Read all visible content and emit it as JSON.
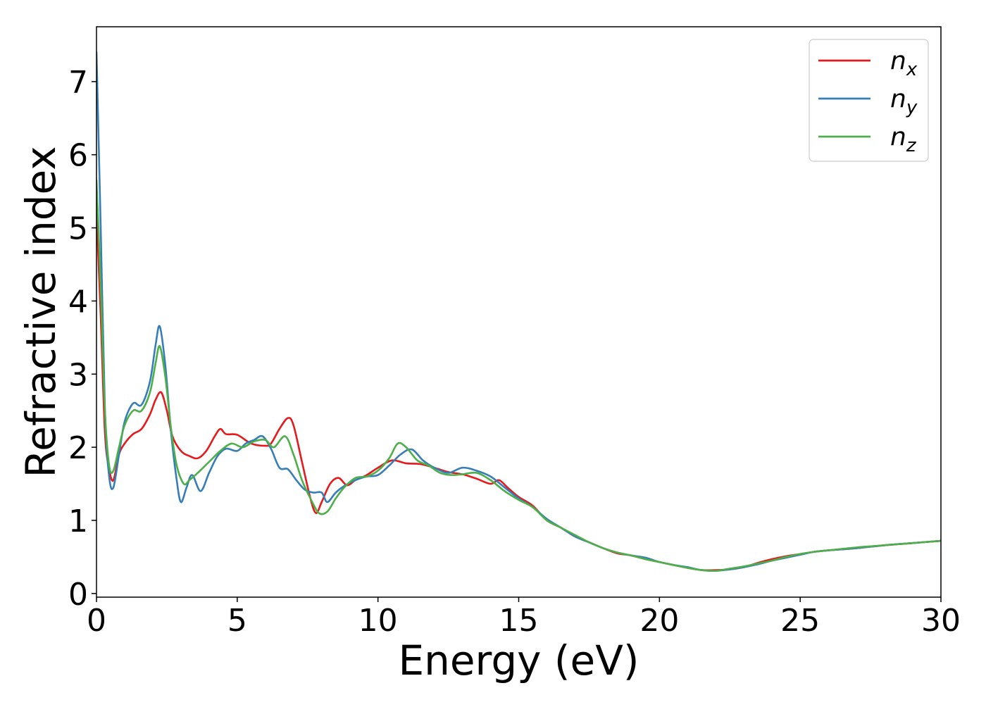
{
  "chart_data": {
    "type": "line",
    "title": "",
    "xlabel": "Energy (eV)",
    "ylabel": "Refractive index",
    "xlim": [
      0,
      30
    ],
    "ylim": [
      -0.05,
      7.75
    ],
    "xticks": [
      "0",
      "5",
      "10",
      "15",
      "20",
      "25",
      "30"
    ],
    "yticks": [
      "0",
      "1",
      "2",
      "3",
      "4",
      "5",
      "6",
      "7"
    ],
    "grid": false,
    "legend_position": "top-right",
    "series": [
      {
        "name": "n_x",
        "label_base": "n",
        "label_sub": "x",
        "color": "#e41a1c",
        "points": [
          [
            0,
            5.2
          ],
          [
            0.15,
            3.8
          ],
          [
            0.3,
            2.2
          ],
          [
            0.45,
            1.7
          ],
          [
            0.6,
            1.55
          ],
          [
            0.8,
            1.9
          ],
          [
            1.0,
            2.05
          ],
          [
            1.3,
            2.18
          ],
          [
            1.6,
            2.25
          ],
          [
            1.9,
            2.45
          ],
          [
            2.1,
            2.65
          ],
          [
            2.3,
            2.75
          ],
          [
            2.5,
            2.5
          ],
          [
            2.7,
            2.15
          ],
          [
            3.0,
            1.95
          ],
          [
            3.3,
            1.88
          ],
          [
            3.6,
            1.85
          ],
          [
            3.9,
            1.95
          ],
          [
            4.2,
            2.15
          ],
          [
            4.4,
            2.25
          ],
          [
            4.6,
            2.18
          ],
          [
            5.0,
            2.17
          ],
          [
            5.5,
            2.05
          ],
          [
            6.0,
            2.02
          ],
          [
            6.2,
            2.05
          ],
          [
            6.5,
            2.25
          ],
          [
            6.8,
            2.4
          ],
          [
            7.0,
            2.3
          ],
          [
            7.3,
            1.8
          ],
          [
            7.6,
            1.3
          ],
          [
            7.8,
            1.1
          ],
          [
            8.0,
            1.25
          ],
          [
            8.3,
            1.5
          ],
          [
            8.6,
            1.58
          ],
          [
            8.9,
            1.48
          ],
          [
            9.2,
            1.55
          ],
          [
            9.6,
            1.62
          ],
          [
            10.0,
            1.72
          ],
          [
            10.5,
            1.82
          ],
          [
            11.0,
            1.78
          ],
          [
            11.5,
            1.77
          ],
          [
            12.0,
            1.72
          ],
          [
            12.5,
            1.66
          ],
          [
            13.0,
            1.63
          ],
          [
            13.5,
            1.57
          ],
          [
            14.0,
            1.5
          ],
          [
            14.3,
            1.55
          ],
          [
            14.6,
            1.45
          ],
          [
            15.0,
            1.32
          ],
          [
            15.5,
            1.2
          ],
          [
            16.0,
            1.0
          ],
          [
            16.5,
            0.9
          ],
          [
            17.0,
            0.78
          ],
          [
            17.5,
            0.7
          ],
          [
            18.0,
            0.62
          ],
          [
            18.5,
            0.55
          ],
          [
            19.0,
            0.52
          ],
          [
            19.5,
            0.47
          ],
          [
            20.0,
            0.43
          ],
          [
            20.5,
            0.39
          ],
          [
            21.0,
            0.35
          ],
          [
            21.5,
            0.32
          ],
          [
            22.0,
            0.32
          ],
          [
            22.5,
            0.33
          ],
          [
            23.0,
            0.36
          ],
          [
            23.5,
            0.42
          ],
          [
            24.0,
            0.47
          ],
          [
            24.5,
            0.51
          ],
          [
            25.0,
            0.54
          ],
          [
            25.5,
            0.57
          ],
          [
            26.0,
            0.59
          ],
          [
            27.0,
            0.62
          ],
          [
            28.0,
            0.66
          ],
          [
            29.0,
            0.69
          ],
          [
            30.0,
            0.72
          ]
        ]
      },
      {
        "name": "n_y",
        "label_base": "n",
        "label_sub": "y",
        "color": "#377eb8",
        "points": [
          [
            0,
            7.4
          ],
          [
            0.15,
            5.0
          ],
          [
            0.3,
            2.5
          ],
          [
            0.45,
            1.6
          ],
          [
            0.6,
            1.45
          ],
          [
            0.8,
            1.9
          ],
          [
            1.0,
            2.35
          ],
          [
            1.3,
            2.6
          ],
          [
            1.6,
            2.58
          ],
          [
            1.9,
            2.9
          ],
          [
            2.1,
            3.4
          ],
          [
            2.25,
            3.65
          ],
          [
            2.45,
            3.1
          ],
          [
            2.65,
            2.2
          ],
          [
            2.85,
            1.55
          ],
          [
            3.0,
            1.25
          ],
          [
            3.2,
            1.45
          ],
          [
            3.4,
            1.62
          ],
          [
            3.7,
            1.4
          ],
          [
            4.0,
            1.65
          ],
          [
            4.3,
            1.88
          ],
          [
            4.6,
            1.98
          ],
          [
            5.0,
            1.95
          ],
          [
            5.3,
            2.05
          ],
          [
            5.6,
            2.1
          ],
          [
            5.9,
            2.15
          ],
          [
            6.2,
            1.98
          ],
          [
            6.5,
            1.72
          ],
          [
            6.8,
            1.7
          ],
          [
            7.1,
            1.55
          ],
          [
            7.4,
            1.42
          ],
          [
            7.7,
            1.38
          ],
          [
            8.0,
            1.38
          ],
          [
            8.2,
            1.25
          ],
          [
            8.5,
            1.38
          ],
          [
            8.8,
            1.47
          ],
          [
            9.2,
            1.55
          ],
          [
            9.6,
            1.6
          ],
          [
            10.0,
            1.62
          ],
          [
            10.4,
            1.75
          ],
          [
            10.8,
            1.9
          ],
          [
            11.2,
            1.97
          ],
          [
            11.6,
            1.82
          ],
          [
            12.0,
            1.72
          ],
          [
            12.5,
            1.65
          ],
          [
            13.0,
            1.72
          ],
          [
            13.5,
            1.68
          ],
          [
            14.0,
            1.6
          ],
          [
            14.5,
            1.45
          ],
          [
            15.0,
            1.3
          ],
          [
            15.5,
            1.18
          ],
          [
            16.0,
            1.02
          ],
          [
            16.5,
            0.9
          ],
          [
            17.0,
            0.78
          ],
          [
            17.5,
            0.7
          ],
          [
            18.0,
            0.62
          ],
          [
            18.5,
            0.56
          ],
          [
            19.0,
            0.52
          ],
          [
            19.5,
            0.49
          ],
          [
            20.0,
            0.43
          ],
          [
            20.5,
            0.39
          ],
          [
            21.0,
            0.36
          ],
          [
            21.5,
            0.32
          ],
          [
            22.0,
            0.31
          ],
          [
            22.5,
            0.33
          ],
          [
            23.0,
            0.36
          ],
          [
            23.5,
            0.4
          ],
          [
            24.0,
            0.45
          ],
          [
            24.5,
            0.49
          ],
          [
            25.0,
            0.53
          ],
          [
            25.5,
            0.57
          ],
          [
            26.0,
            0.59
          ],
          [
            27.0,
            0.62
          ],
          [
            28.0,
            0.66
          ],
          [
            29.0,
            0.69
          ],
          [
            30.0,
            0.72
          ]
        ]
      },
      {
        "name": "n_z",
        "label_base": "n",
        "label_sub": "z",
        "color": "#4daf4a",
        "points": [
          [
            0,
            5.65
          ],
          [
            0.15,
            4.2
          ],
          [
            0.3,
            2.5
          ],
          [
            0.45,
            1.75
          ],
          [
            0.6,
            1.68
          ],
          [
            0.8,
            2.0
          ],
          [
            1.0,
            2.3
          ],
          [
            1.3,
            2.5
          ],
          [
            1.6,
            2.5
          ],
          [
            1.9,
            2.75
          ],
          [
            2.1,
            3.15
          ],
          [
            2.25,
            3.38
          ],
          [
            2.45,
            2.95
          ],
          [
            2.65,
            2.25
          ],
          [
            2.85,
            1.75
          ],
          [
            3.1,
            1.5
          ],
          [
            3.3,
            1.55
          ],
          [
            3.6,
            1.65
          ],
          [
            4.0,
            1.8
          ],
          [
            4.4,
            1.95
          ],
          [
            4.8,
            2.05
          ],
          [
            5.2,
            2.0
          ],
          [
            5.6,
            2.08
          ],
          [
            6.0,
            2.1
          ],
          [
            6.3,
            2.0
          ],
          [
            6.7,
            2.15
          ],
          [
            7.0,
            1.9
          ],
          [
            7.3,
            1.55
          ],
          [
            7.6,
            1.3
          ],
          [
            7.9,
            1.1
          ],
          [
            8.2,
            1.12
          ],
          [
            8.5,
            1.3
          ],
          [
            8.8,
            1.45
          ],
          [
            9.2,
            1.58
          ],
          [
            9.6,
            1.6
          ],
          [
            10.0,
            1.68
          ],
          [
            10.4,
            1.85
          ],
          [
            10.7,
            2.05
          ],
          [
            11.0,
            2.0
          ],
          [
            11.4,
            1.82
          ],
          [
            11.8,
            1.75
          ],
          [
            12.2,
            1.65
          ],
          [
            12.6,
            1.62
          ],
          [
            13.0,
            1.63
          ],
          [
            13.5,
            1.65
          ],
          [
            14.0,
            1.55
          ],
          [
            14.5,
            1.4
          ],
          [
            15.0,
            1.28
          ],
          [
            15.5,
            1.18
          ],
          [
            16.0,
            1.0
          ],
          [
            16.5,
            0.9
          ],
          [
            17.0,
            0.8
          ],
          [
            17.5,
            0.7
          ],
          [
            18.0,
            0.62
          ],
          [
            18.5,
            0.56
          ],
          [
            19.0,
            0.52
          ],
          [
            19.5,
            0.47
          ],
          [
            20.0,
            0.43
          ],
          [
            20.5,
            0.39
          ],
          [
            21.0,
            0.35
          ],
          [
            21.5,
            0.32
          ],
          [
            22.0,
            0.31
          ],
          [
            22.5,
            0.34
          ],
          [
            23.0,
            0.37
          ],
          [
            23.5,
            0.41
          ],
          [
            24.0,
            0.45
          ],
          [
            24.5,
            0.5
          ],
          [
            25.0,
            0.54
          ],
          [
            25.5,
            0.57
          ],
          [
            26.0,
            0.59
          ],
          [
            27.0,
            0.63
          ],
          [
            28.0,
            0.66
          ],
          [
            29.0,
            0.69
          ],
          [
            30.0,
            0.72
          ]
        ]
      }
    ]
  }
}
